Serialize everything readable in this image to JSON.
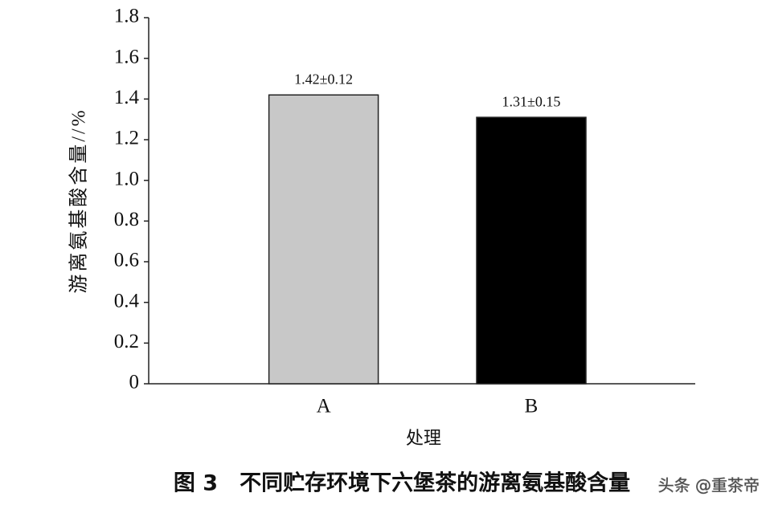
{
  "chart_data": {
    "type": "bar",
    "y_label": "游离氨基酸含量//%",
    "x_label": "处理",
    "caption": "图 3　不同贮存环境下六堡茶的游离氨基酸含量",
    "watermark": "头条 @重茶帝",
    "categories": [
      "A",
      "B"
    ],
    "values": [
      1.42,
      1.31
    ],
    "value_labels": [
      "1.42±0.12",
      "1.31±0.15"
    ],
    "colors": [
      "#c8c8c8",
      "#000000"
    ],
    "ylim": [
      0,
      1.8
    ],
    "yticks": [
      0,
      0.2,
      0.4,
      0.6,
      0.8,
      {
        "value": 1,
        "label": "1.0"
      },
      1.2,
      1.4,
      1.6,
      1.8
    ],
    "grid": false
  }
}
